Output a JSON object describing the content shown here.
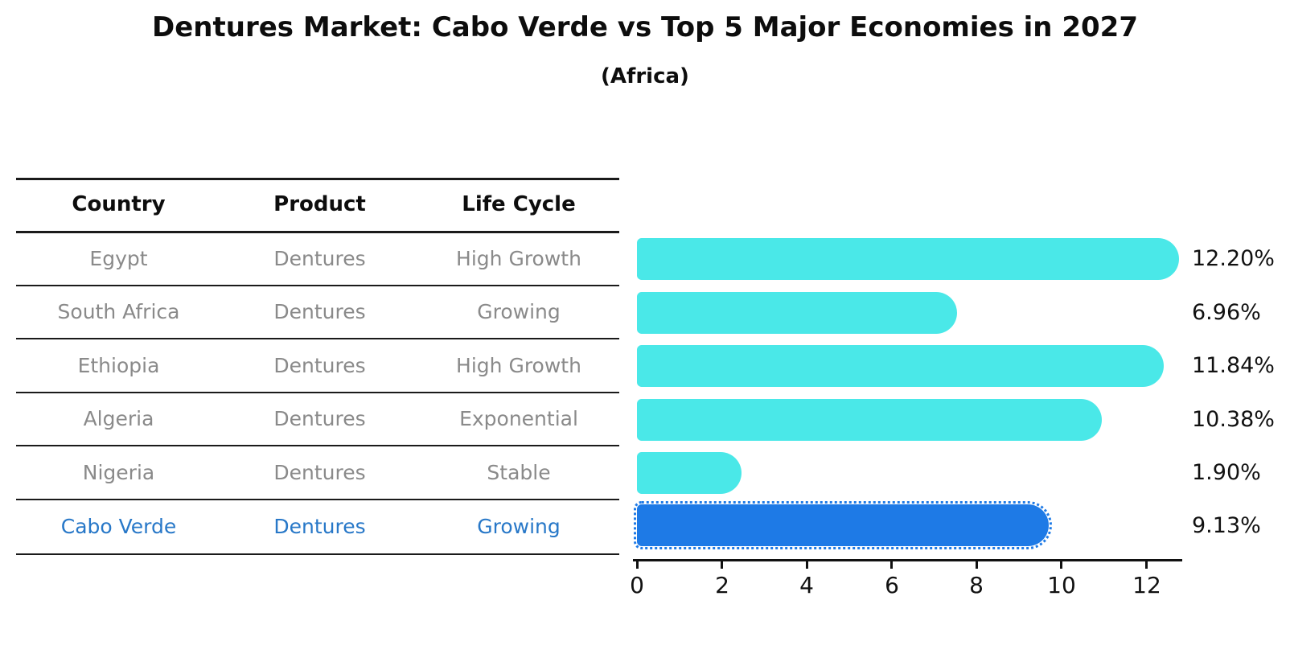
{
  "title": "Dentures Market: Cabo Verde vs Top 5 Major Economies in 2027",
  "subtitle": "(Africa)",
  "table": {
    "headers": [
      "Country",
      "Product",
      "Life Cycle"
    ],
    "rows": [
      {
        "country": "Egypt",
        "product": "Dentures",
        "life_cycle": "High Growth",
        "highlight": false
      },
      {
        "country": "South Africa",
        "product": "Dentures",
        "life_cycle": "Growing",
        "highlight": false
      },
      {
        "country": "Ethiopia",
        "product": "Dentures",
        "life_cycle": "High Growth",
        "highlight": false
      },
      {
        "country": "Algeria",
        "product": "Dentures",
        "life_cycle": "Exponential",
        "highlight": false
      },
      {
        "country": "Nigeria",
        "product": "Dentures",
        "life_cycle": "Stable",
        "highlight": false
      },
      {
        "country": "Cabo Verde",
        "product": "Dentures",
        "life_cycle": "Growing",
        "highlight": true
      }
    ]
  },
  "chart_data": {
    "type": "bar",
    "orientation": "horizontal",
    "title": "Dentures Market: Cabo Verde vs Top 5 Major Economies in 2027",
    "subtitle": "(Africa)",
    "categories": [
      "Egypt",
      "South Africa",
      "Ethiopia",
      "Algeria",
      "Nigeria",
      "Cabo Verde"
    ],
    "values": [
      12.2,
      6.96,
      11.84,
      10.38,
      1.9,
      9.13
    ],
    "value_labels": [
      "12.20%",
      "6.96%",
      "11.84%",
      "10.38%",
      "1.90%",
      "9.13%"
    ],
    "x_ticks": [
      0,
      2,
      4,
      6,
      8,
      10,
      12
    ],
    "xlim": [
      0,
      12.85
    ],
    "xlabel": "",
    "ylabel": "",
    "grid": false,
    "legend": false,
    "bar_color": "#4ae8e8",
    "highlight_color": "#1e7ae6",
    "highlight_index": 5,
    "highlight_edge_style": "dotted"
  },
  "colors": {
    "background": "#ffffff",
    "title_text": "#0d0d0d",
    "table_text": "#8a8a8a",
    "table_header_text": "#0d0d0d",
    "highlight_text": "#2878c8",
    "table_line": "#1a1a1a",
    "axis": "#111111",
    "bar": "#4ae8e8",
    "highlight_bar": "#1e7ae6"
  }
}
